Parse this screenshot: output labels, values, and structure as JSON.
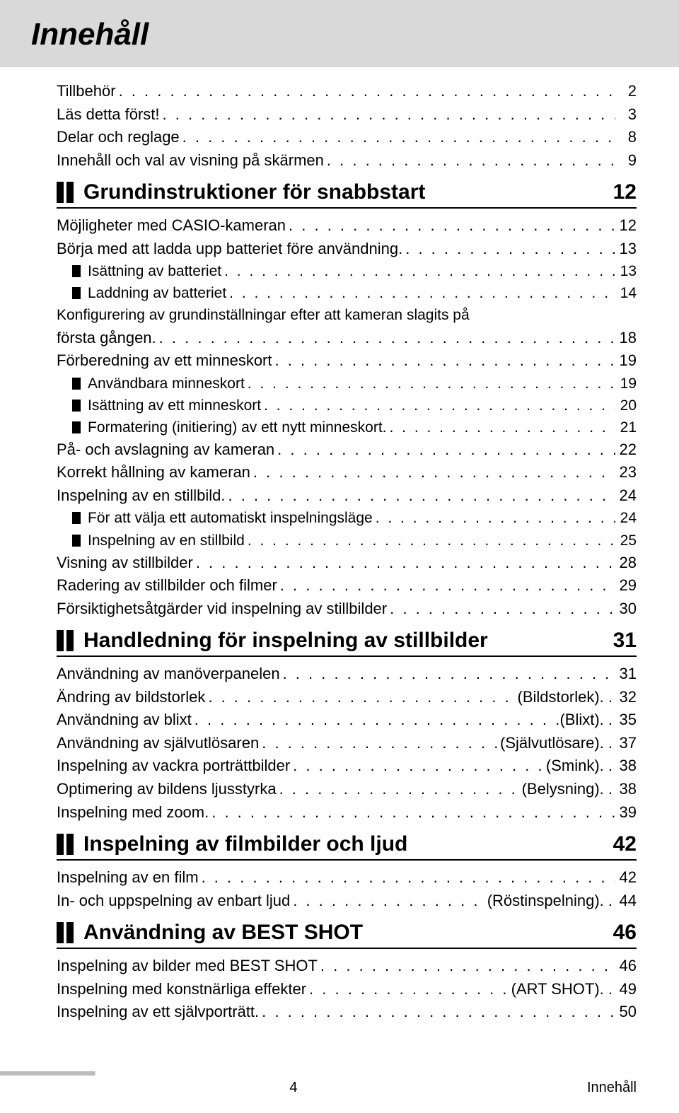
{
  "title": "Innehåll",
  "intro": [
    {
      "label": "Tillbehör",
      "page": "2"
    },
    {
      "label": "Läs detta först!",
      "page": "3"
    },
    {
      "label": "Delar och reglage",
      "page": "8"
    },
    {
      "label": "Innehåll och val av visning på skärmen",
      "page": "9"
    }
  ],
  "sections": [
    {
      "title": "Grundinstruktioner för snabbstart",
      "page": "12",
      "items": [
        {
          "type": "line",
          "label": "Möjligheter med CASIO-kameran",
          "page": "12"
        },
        {
          "type": "line",
          "label": "Börja med att ladda upp batteriet före användning.",
          "page": "13"
        },
        {
          "type": "sub",
          "label": "Isättning av batteriet",
          "page": "13"
        },
        {
          "type": "sub",
          "label": "Laddning av batteriet",
          "page": "14"
        },
        {
          "type": "wrap",
          "label1": "Konfigurering av grundinställningar efter att kameran slagits på",
          "label2": "första gången.",
          "page": "18"
        },
        {
          "type": "line",
          "label": "Förberedning av ett minneskort",
          "page": "19"
        },
        {
          "type": "sub",
          "label": "Användbara minneskort",
          "page": "19"
        },
        {
          "type": "sub",
          "label": "Isättning av ett minneskort",
          "page": "20"
        },
        {
          "type": "sub",
          "label": "Formatering (initiering) av ett nytt minneskort.",
          "page": "21"
        },
        {
          "type": "line",
          "label": "På- och avslagning av kameran",
          "page": "22"
        },
        {
          "type": "line",
          "label": "Korrekt hållning av kameran",
          "page": "23"
        },
        {
          "type": "line",
          "label": "Inspelning av en stillbild.",
          "page": "24"
        },
        {
          "type": "sub",
          "label": "För att välja ett automatiskt inspelningsläge",
          "page": "24"
        },
        {
          "type": "sub",
          "label": "Inspelning av en stillbild",
          "page": "25"
        },
        {
          "type": "line",
          "label": "Visning av stillbilder",
          "page": "28"
        },
        {
          "type": "line",
          "label": "Radering av stillbilder och filmer",
          "page": "29"
        },
        {
          "type": "line",
          "label": "Försiktighetsåtgärder vid inspelning av stillbilder",
          "page": "30"
        }
      ]
    },
    {
      "title": "Handledning för inspelning av stillbilder",
      "page": "31",
      "items": [
        {
          "type": "line",
          "label": "Användning av manöverpanelen",
          "page": "31"
        },
        {
          "type": "line",
          "label": "Ändring av bildstorlek",
          "suffix": "(Bildstorlek). .",
          "page": "32"
        },
        {
          "type": "line",
          "label": "Användning av blixt",
          "suffix": "(Blixt). .",
          "page": "35"
        },
        {
          "type": "line",
          "label": "Användning av självutlösaren",
          "suffix": "(Självutlösare). .",
          "page": "37"
        },
        {
          "type": "line",
          "label": "Inspelning av vackra porträttbilder",
          "suffix": "(Smink). .",
          "page": "38"
        },
        {
          "type": "line",
          "label": "Optimering av bildens ljusstyrka",
          "suffix": "(Belysning). .",
          "page": "38"
        },
        {
          "type": "line",
          "label": "Inspelning med zoom.",
          "page": "39"
        }
      ]
    },
    {
      "title": "Inspelning av filmbilder och ljud",
      "page": "42",
      "items": [
        {
          "type": "line",
          "label": "Inspelning av en film",
          "page": "42"
        },
        {
          "type": "line",
          "label": "In- och uppspelning av enbart ljud",
          "suffix": "(Röstinspelning). .",
          "page": "44"
        }
      ]
    },
    {
      "title": "Användning av BEST SHOT",
      "page": "46",
      "items": [
        {
          "type": "line",
          "label": "Inspelning av bilder med BEST SHOT",
          "page": "46"
        },
        {
          "type": "line",
          "label": "Inspelning med konstnärliga effekter",
          "suffix": "(ART SHOT). .",
          "page": "49"
        },
        {
          "type": "line",
          "label": "Inspelning av ett självporträtt.",
          "page": "50"
        }
      ]
    }
  ],
  "footer": {
    "page": "4",
    "label": "Innehåll"
  }
}
